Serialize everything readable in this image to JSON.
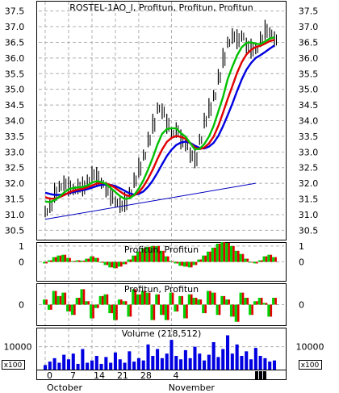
{
  "chart_data": [
    {
      "panel": "price",
      "type": "line",
      "title": "ROSTEL-1AO_I, Profitun, Profitun, Profitun",
      "ylim": [
        30.2,
        37.8
      ],
      "yticks": [
        "30.5",
        "31.0",
        "31.5",
        "32.0",
        "32.5",
        "33.0",
        "33.5",
        "34.0",
        "34.5",
        "35.0",
        "35.5",
        "36.0",
        "36.5",
        "37.0",
        "37.5"
      ],
      "grid": true,
      "price": [
        31.1,
        31.3,
        31.7,
        31.9,
        32.0,
        31.9,
        31.8,
        31.9,
        31.9,
        32.1,
        32.3,
        32.2,
        32.0,
        31.8,
        31.6,
        31.4,
        31.3,
        31.4,
        31.7,
        32.1,
        32.5,
        32.9,
        33.4,
        33.9,
        34.4,
        34.3,
        33.9,
        33.6,
        33.7,
        33.4,
        33.2,
        32.9,
        32.8,
        33.4,
        34.0,
        34.4,
        34.8,
        35.4,
        36.0,
        36.5,
        36.7,
        36.6,
        36.7,
        36.4,
        36.3,
        36.3,
        36.6,
        36.9,
        36.8,
        36.6
      ],
      "series": [
        {
          "color": "#00c000",
          "values": [
            31.42,
            31.4,
            31.46,
            31.57,
            31.7,
            31.81,
            31.85,
            31.87,
            31.88,
            31.93,
            32.02,
            32.07,
            32.04,
            31.98,
            31.85,
            31.72,
            31.59,
            31.5,
            31.52,
            31.62,
            31.83,
            32.1,
            32.44,
            32.82,
            33.24,
            33.58,
            33.73,
            33.76,
            33.75,
            33.6,
            33.49,
            33.28,
            33.08,
            33.1,
            33.25,
            33.49,
            33.83,
            34.29,
            34.75,
            35.32,
            35.72,
            36.08,
            36.34,
            36.48,
            36.5,
            36.46,
            36.44,
            36.53,
            36.62,
            36.66
          ]
        },
        {
          "color": "#e00000",
          "values": [
            31.56,
            31.51,
            31.51,
            31.55,
            31.62,
            31.7,
            31.76,
            31.8,
            31.82,
            31.87,
            31.93,
            31.99,
            32.01,
            31.99,
            31.94,
            31.85,
            31.74,
            31.64,
            31.59,
            31.61,
            31.71,
            31.9,
            32.15,
            32.44,
            32.78,
            33.08,
            33.32,
            33.45,
            33.51,
            33.48,
            33.42,
            33.28,
            33.14,
            33.09,
            33.14,
            33.27,
            33.49,
            33.83,
            34.25,
            34.69,
            35.1,
            35.52,
            35.86,
            36.11,
            36.26,
            36.35,
            36.39,
            36.46,
            36.54,
            36.58
          ]
        },
        {
          "color": "#0000e0",
          "values": [
            31.7,
            31.66,
            31.63,
            31.63,
            31.64,
            31.68,
            31.72,
            31.75,
            31.78,
            31.81,
            31.86,
            31.91,
            31.95,
            31.96,
            31.95,
            31.91,
            31.84,
            31.76,
            31.68,
            31.64,
            31.66,
            31.74,
            31.89,
            32.09,
            32.34,
            32.61,
            32.87,
            33.07,
            33.22,
            33.3,
            33.33,
            33.29,
            33.2,
            33.13,
            33.11,
            33.17,
            33.29,
            33.51,
            33.82,
            34.17,
            34.54,
            34.94,
            35.31,
            35.62,
            35.84,
            36.0,
            36.09,
            36.19,
            36.3,
            36.4
          ]
        }
      ],
      "trendline": {
        "from": [
          0,
          30.85
        ],
        "to": [
          45,
          32.0
        ],
        "color": "#0000c0"
      }
    },
    {
      "panel": "osc1",
      "type": "bar",
      "title": "Profitun, Profitun",
      "yticks": [
        "1",
        "0"
      ],
      "ylim": [
        -1.2,
        1.2
      ],
      "values": [
        -0.1,
        0.1,
        0.3,
        0.4,
        0.45,
        0.25,
        0.05,
        0.1,
        0.08,
        0.2,
        0.35,
        0.25,
        -0.05,
        -0.2,
        -0.35,
        -0.4,
        -0.3,
        -0.15,
        0.15,
        0.4,
        0.65,
        0.85,
        0.95,
        1.0,
        1.0,
        0.7,
        0.35,
        0.05,
        -0.1,
        -0.25,
        -0.3,
        -0.35,
        -0.2,
        0.15,
        0.4,
        0.65,
        0.9,
        1.15,
        1.25,
        1.2,
        1.0,
        0.7,
        0.5,
        0.2,
        -0.05,
        -0.1,
        0.1,
        0.35,
        0.45,
        0.3
      ]
    },
    {
      "panel": "osc2",
      "type": "bar",
      "title": "Profitun, Profitun",
      "yticks": [
        "0"
      ],
      "ylim": [
        -1.2,
        1.2
      ],
      "values": [
        0.3,
        -0.3,
        0.8,
        0.5,
        0.7,
        -0.4,
        -0.6,
        0.4,
        0.9,
        0.2,
        -0.8,
        -0.2,
        0.5,
        0.6,
        -0.5,
        -0.9,
        0.3,
        0.2,
        -0.7,
        0.9,
        0.6,
        0.8,
        0.7,
        -0.9,
        0.6,
        -0.6,
        -0.9,
        0.7,
        -0.4,
        0.5,
        -0.8,
        0.6,
        0.4,
        0.3,
        -0.5,
        0.8,
        0.7,
        -0.6,
        0.5,
        0.3,
        -0.7,
        -1.0,
        0.7,
        0.4,
        -0.6,
        0.2,
        0.4,
        0.1,
        -0.7,
        0.4
      ]
    },
    {
      "panel": "volume",
      "type": "bar",
      "title": "Volume (218,512)",
      "yticks": [
        "10000"
      ],
      "ylim": [
        0,
        18000
      ],
      "multiplier_label": "x100",
      "values": [
        2000,
        3500,
        5000,
        3000,
        6500,
        4500,
        7000,
        2500,
        9000,
        3000,
        4000,
        6000,
        2500,
        5500,
        3000,
        7500,
        4500,
        3000,
        8000,
        3500,
        5000,
        4000,
        11000,
        6000,
        9000,
        5000,
        7000,
        13000,
        6000,
        4500,
        8500,
        5000,
        10000,
        7000,
        4000,
        6500,
        12000,
        5500,
        9000,
        15000,
        7000,
        11000,
        6000,
        8000,
        4500,
        9500,
        6000,
        5000,
        3500,
        4000
      ],
      "xticks": [
        {
          "label": "0",
          "index": 0
        },
        {
          "label": "7",
          "index": 5
        },
        {
          "label": "14",
          "index": 10
        },
        {
          "label": "21",
          "index": 15
        },
        {
          "label": "28",
          "index": 20
        },
        {
          "label": "4",
          "index": 27
        }
      ],
      "months": [
        {
          "label": "October",
          "index": 0
        },
        {
          "label": "November",
          "index": 26
        }
      ]
    }
  ]
}
